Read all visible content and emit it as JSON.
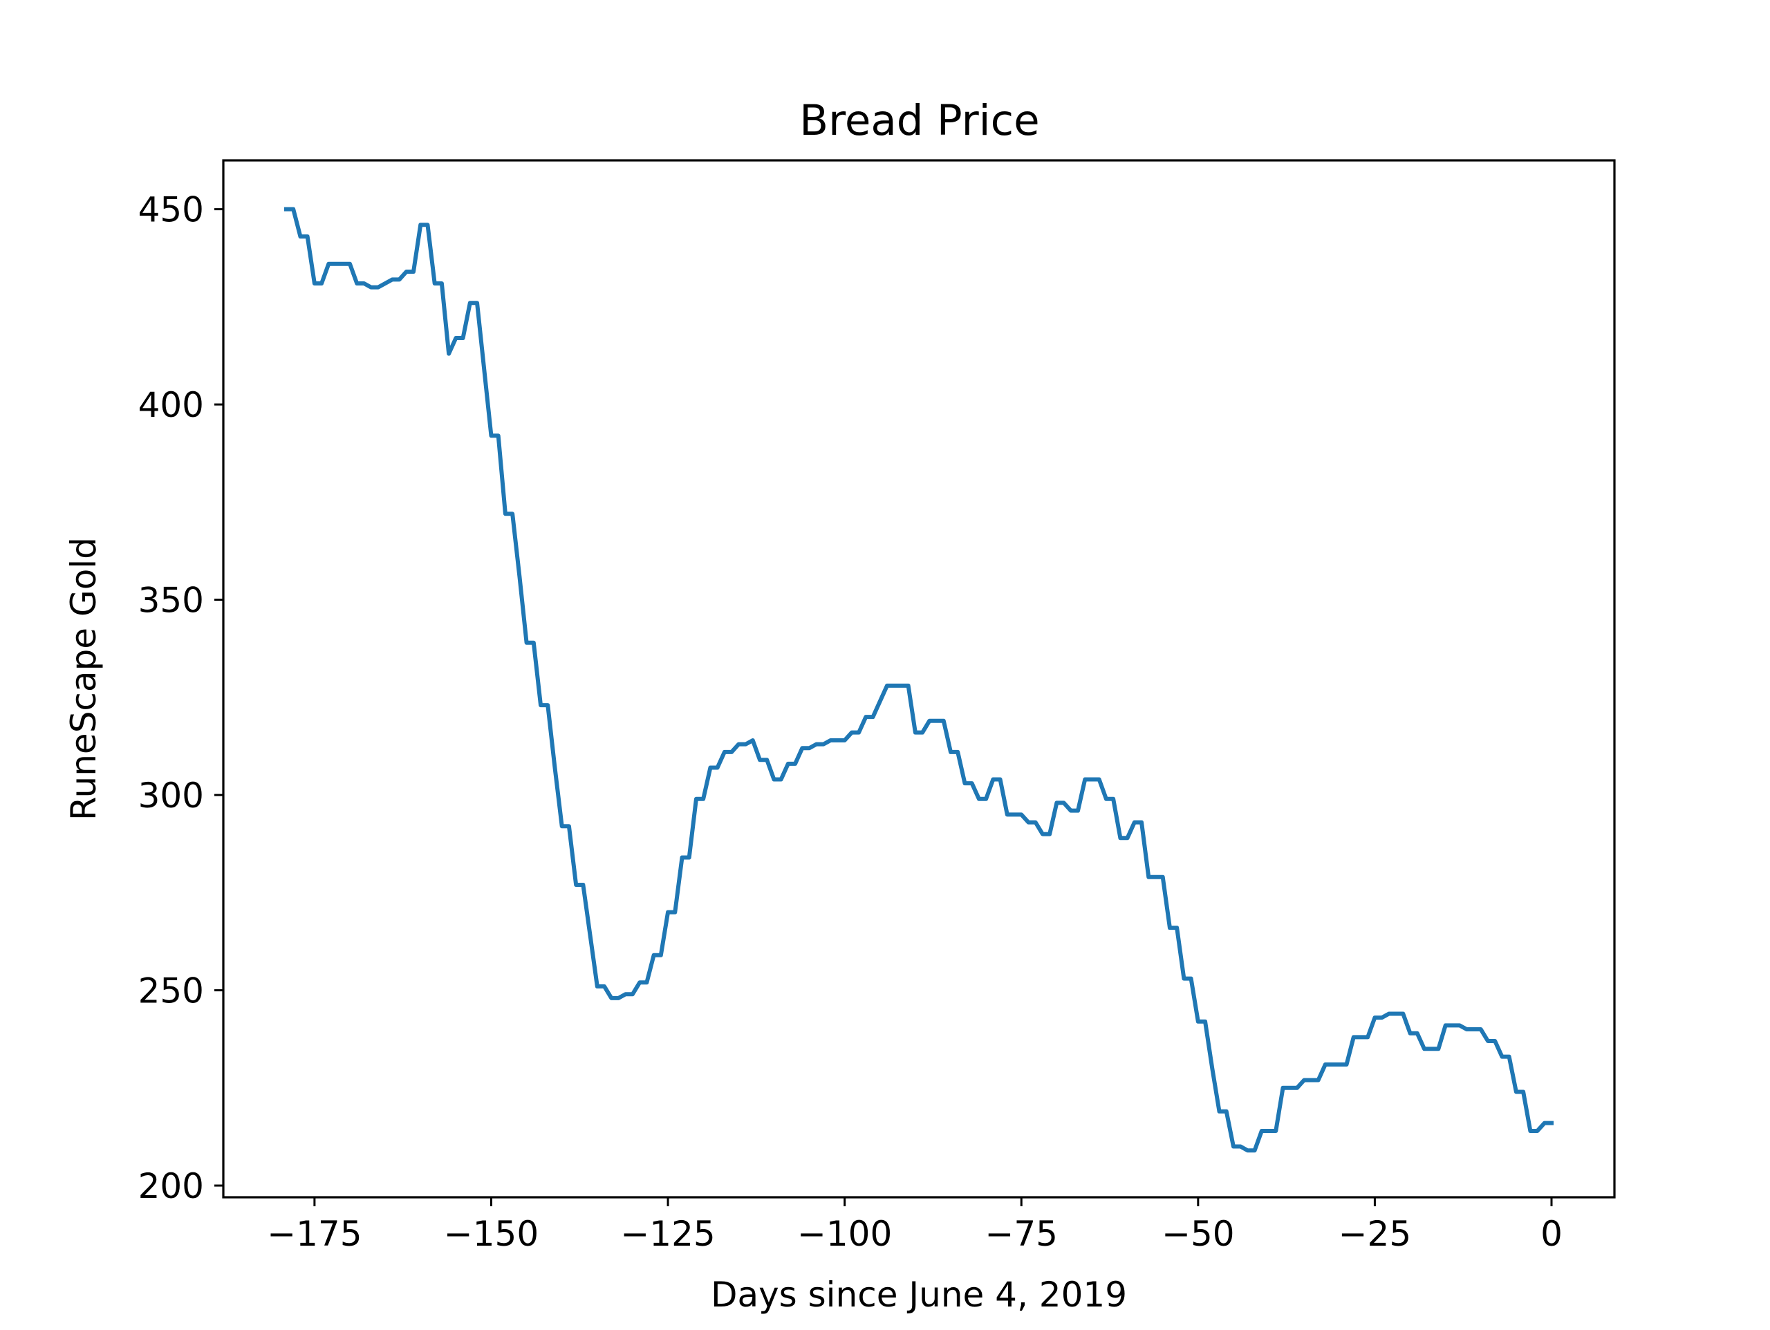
{
  "chart_data": {
    "type": "line",
    "title": "Bread Price",
    "xlabel": "Days since June 4, 2019",
    "ylabel": "RuneScape Gold",
    "xlim": [
      -187.9,
      8.9
    ],
    "ylim": [
      197,
      462.5
    ],
    "xticks": [
      -175,
      -150,
      -125,
      -100,
      -75,
      -50,
      -25,
      0
    ],
    "xtick_labels": [
      "−175",
      "−150",
      "−125",
      "−100",
      "−75",
      "−50",
      "−25",
      "0"
    ],
    "yticks": [
      200,
      250,
      300,
      350,
      400,
      450
    ],
    "ytick_labels": [
      "200",
      "250",
      "300",
      "350",
      "400",
      "450"
    ],
    "grid": false,
    "series": [
      {
        "color": "#1f77b4",
        "points": [
          [
            -179,
            450
          ],
          [
            -178,
            450
          ],
          [
            -177,
            443
          ],
          [
            -176,
            443
          ],
          [
            -175,
            431
          ],
          [
            -174,
            431
          ],
          [
            -173,
            436
          ],
          [
            -172,
            436
          ],
          [
            -171,
            436
          ],
          [
            -170,
            436
          ],
          [
            -169,
            431
          ],
          [
            -168,
            431
          ],
          [
            -167,
            430
          ],
          [
            -166,
            430
          ],
          [
            -165,
            431
          ],
          [
            -164,
            432
          ],
          [
            -163,
            432
          ],
          [
            -162,
            434
          ],
          [
            -161,
            434
          ],
          [
            -160,
            446
          ],
          [
            -159,
            446
          ],
          [
            -158,
            431
          ],
          [
            -157,
            431
          ],
          [
            -156,
            413
          ],
          [
            -155,
            417
          ],
          [
            -154,
            417
          ],
          [
            -153,
            426
          ],
          [
            -152,
            426
          ],
          [
            -151,
            409
          ],
          [
            -150,
            392
          ],
          [
            -149,
            392
          ],
          [
            -148,
            372
          ],
          [
            -147,
            372
          ],
          [
            -146,
            356
          ],
          [
            -145,
            339
          ],
          [
            -144,
            339
          ],
          [
            -143,
            323
          ],
          [
            -142,
            323
          ],
          [
            -141,
            307
          ],
          [
            -140,
            292
          ],
          [
            -139,
            292
          ],
          [
            -138,
            277
          ],
          [
            -137,
            277
          ],
          [
            -136,
            264
          ],
          [
            -135,
            251
          ],
          [
            -134,
            251
          ],
          [
            -133,
            248
          ],
          [
            -132,
            248
          ],
          [
            -131,
            249
          ],
          [
            -130,
            249
          ],
          [
            -129,
            252
          ],
          [
            -128,
            252
          ],
          [
            -127,
            259
          ],
          [
            -126,
            259
          ],
          [
            -125,
            270
          ],
          [
            -124,
            270
          ],
          [
            -123,
            284
          ],
          [
            -122,
            284
          ],
          [
            -121,
            299
          ],
          [
            -120,
            299
          ],
          [
            -119,
            307
          ],
          [
            -118,
            307
          ],
          [
            -117,
            311
          ],
          [
            -116,
            311
          ],
          [
            -115,
            313
          ],
          [
            -114,
            313
          ],
          [
            -113,
            314
          ],
          [
            -112,
            309
          ],
          [
            -111,
            309
          ],
          [
            -110,
            304
          ],
          [
            -109,
            304
          ],
          [
            -108,
            308
          ],
          [
            -107,
            308
          ],
          [
            -106,
            312
          ],
          [
            -105,
            312
          ],
          [
            -104,
            313
          ],
          [
            -103,
            313
          ],
          [
            -102,
            314
          ],
          [
            -101,
            314
          ],
          [
            -100,
            314
          ],
          [
            -99,
            316
          ],
          [
            -98,
            316
          ],
          [
            -97,
            320
          ],
          [
            -96,
            320
          ],
          [
            -95,
            324
          ],
          [
            -94,
            328
          ],
          [
            -93,
            328
          ],
          [
            -92,
            328
          ],
          [
            -91,
            328
          ],
          [
            -90,
            316
          ],
          [
            -89,
            316
          ],
          [
            -88,
            319
          ],
          [
            -87,
            319
          ],
          [
            -86,
            319
          ],
          [
            -85,
            311
          ],
          [
            -84,
            311
          ],
          [
            -83,
            303
          ],
          [
            -82,
            303
          ],
          [
            -81,
            299
          ],
          [
            -80,
            299
          ],
          [
            -79,
            304
          ],
          [
            -78,
            304
          ],
          [
            -77,
            295
          ],
          [
            -76,
            295
          ],
          [
            -75,
            295
          ],
          [
            -74,
            293
          ],
          [
            -73,
            293
          ],
          [
            -72,
            290
          ],
          [
            -71,
            290
          ],
          [
            -70,
            298
          ],
          [
            -69,
            298
          ],
          [
            -68,
            296
          ],
          [
            -67,
            296
          ],
          [
            -66,
            304
          ],
          [
            -65,
            304
          ],
          [
            -64,
            304
          ],
          [
            -63,
            299
          ],
          [
            -62,
            299
          ],
          [
            -61,
            289
          ],
          [
            -60,
            289
          ],
          [
            -59,
            293
          ],
          [
            -58,
            293
          ],
          [
            -57,
            279
          ],
          [
            -56,
            279
          ],
          [
            -55,
            279
          ],
          [
            -54,
            266
          ],
          [
            -53,
            266
          ],
          [
            -52,
            253
          ],
          [
            -51,
            253
          ],
          [
            -50,
            242
          ],
          [
            -49,
            242
          ],
          [
            -48,
            230
          ],
          [
            -47,
            219
          ],
          [
            -46,
            219
          ],
          [
            -45,
            210
          ],
          [
            -44,
            210
          ],
          [
            -43,
            209
          ],
          [
            -42,
            209
          ],
          [
            -41,
            214
          ],
          [
            -40,
            214
          ],
          [
            -39,
            214
          ],
          [
            -38,
            225
          ],
          [
            -37,
            225
          ],
          [
            -36,
            225
          ],
          [
            -35,
            227
          ],
          [
            -34,
            227
          ],
          [
            -33,
            227
          ],
          [
            -32,
            231
          ],
          [
            -31,
            231
          ],
          [
            -30,
            231
          ],
          [
            -29,
            231
          ],
          [
            -28,
            238
          ],
          [
            -27,
            238
          ],
          [
            -26,
            238
          ],
          [
            -25,
            243
          ],
          [
            -24,
            243
          ],
          [
            -23,
            244
          ],
          [
            -22,
            244
          ],
          [
            -21,
            244
          ],
          [
            -20,
            239
          ],
          [
            -19,
            239
          ],
          [
            -18,
            235
          ],
          [
            -17,
            235
          ],
          [
            -16,
            235
          ],
          [
            -15,
            241
          ],
          [
            -14,
            241
          ],
          [
            -13,
            241
          ],
          [
            -12,
            240
          ],
          [
            -11,
            240
          ],
          [
            -10,
            240
          ],
          [
            -9,
            237
          ],
          [
            -8,
            237
          ],
          [
            -7,
            233
          ],
          [
            -6,
            233
          ],
          [
            -5,
            224
          ],
          [
            -4,
            224
          ],
          [
            -3,
            214
          ],
          [
            -2,
            214
          ],
          [
            -1,
            216
          ],
          [
            0,
            216
          ]
        ]
      }
    ]
  }
}
